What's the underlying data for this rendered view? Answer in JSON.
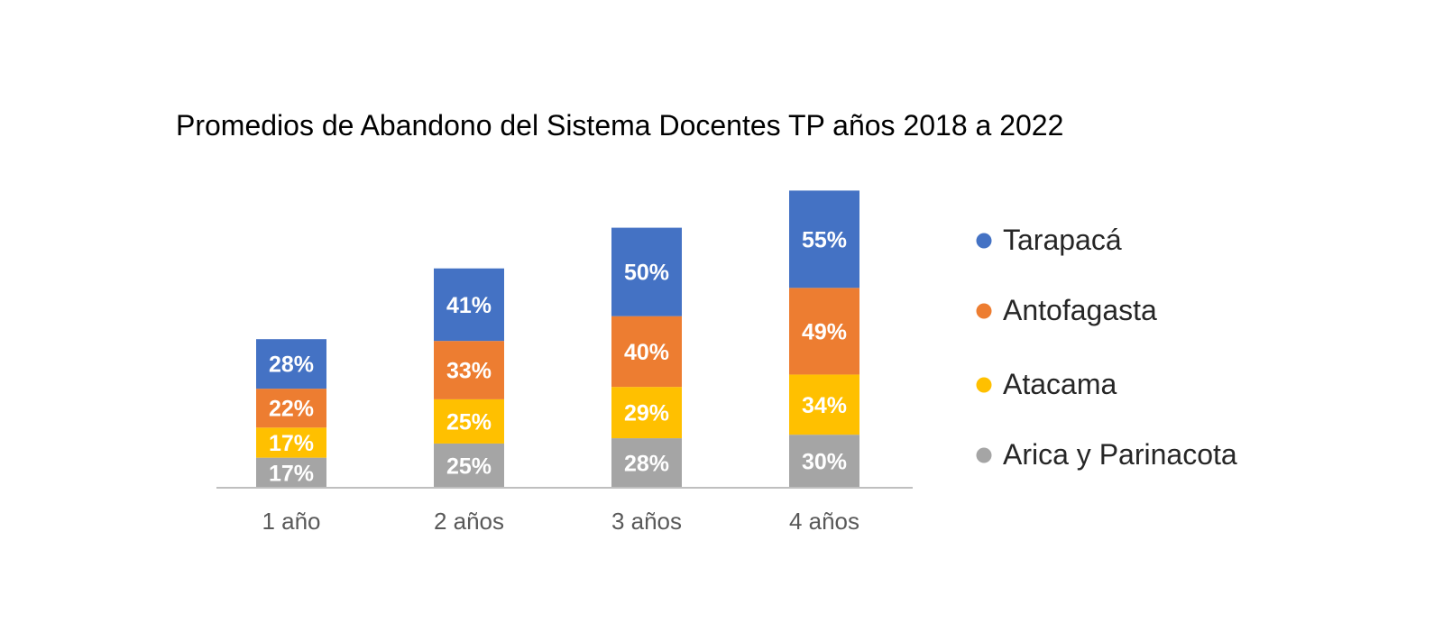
{
  "chart_data": {
    "type": "bar",
    "stacked": true,
    "title": "Promedios de Abandono del Sistema Docentes TP años 2018 a 2022",
    "categories": [
      "1 año",
      "2 años",
      "3 años",
      "4 años"
    ],
    "series": [
      {
        "name": "Arica y Parinacota",
        "color": "#A5A5A5",
        "values": [
          17,
          25,
          28,
          30
        ],
        "labels": [
          "17%",
          "25%",
          "28%",
          "30%"
        ]
      },
      {
        "name": "Atacama",
        "color": "#FFC000",
        "values": [
          17,
          25,
          29,
          34
        ],
        "labels": [
          "17%",
          "25%",
          "29%",
          "34%"
        ]
      },
      {
        "name": "Antofagasta",
        "color": "#ED7D31",
        "values": [
          22,
          33,
          40,
          49
        ],
        "labels": [
          "22%",
          "33%",
          "40%",
          "49%"
        ]
      },
      {
        "name": "Tarapacá",
        "color": "#4472C4",
        "values": [
          28,
          41,
          50,
          55
        ],
        "labels": [
          "28%",
          "41%",
          "50%",
          "55%"
        ]
      }
    ],
    "legend": {
      "position": "right",
      "order": [
        "Tarapacá",
        "Antofagasta",
        "Atacama",
        "Arica y Parinacota"
      ]
    },
    "value_unit": "%",
    "grid": false,
    "axis_color": "#BFBFBF",
    "tick_label_color": "#595959"
  }
}
